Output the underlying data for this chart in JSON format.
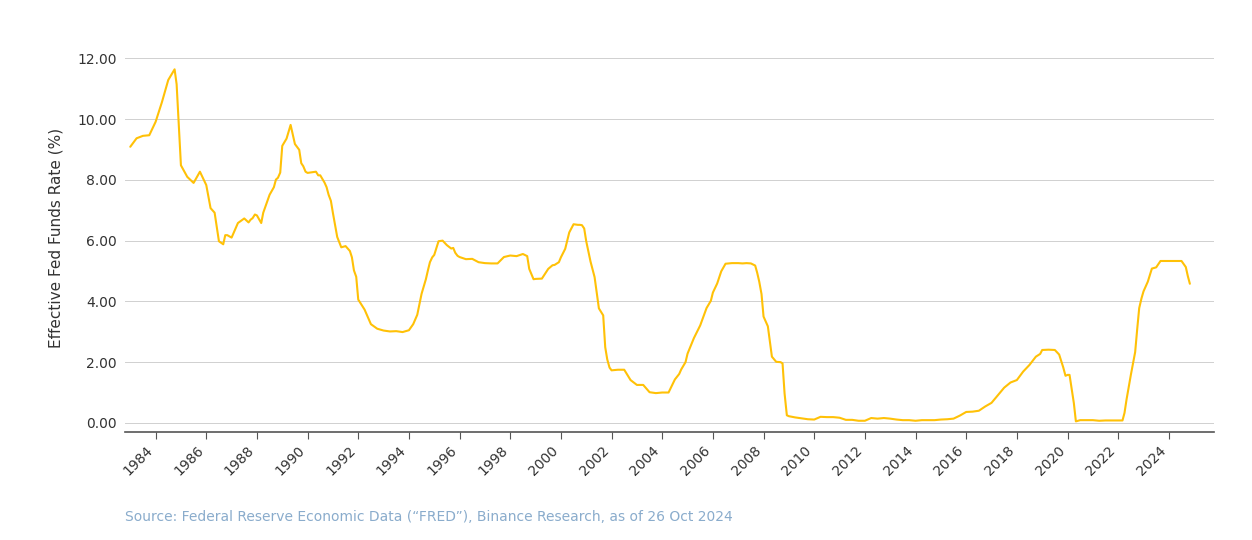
{
  "ylabel": "Effective Fed Funds Rate (%)",
  "source_text": "Source: Federal Reserve Economic Data (“FRED”), Binance Research, as of 26 Oct 2024",
  "line_color": "#FFC107",
  "background_color": "#FFFFFF",
  "grid_color": "#D0D0D0",
  "source_color": "#8AACCC",
  "ylim": [
    -0.3,
    12.5
  ],
  "yticks": [
    0.0,
    2.0,
    4.0,
    6.0,
    8.0,
    10.0,
    12.0
  ],
  "xlim": [
    1982.8,
    2025.8
  ],
  "xtick_years": [
    1984,
    1986,
    1988,
    1990,
    1992,
    1994,
    1996,
    1998,
    2000,
    2002,
    2004,
    2006,
    2008,
    2010,
    2012,
    2014,
    2016,
    2018,
    2020,
    2022,
    2024
  ],
  "data": [
    [
      1983.0,
      9.09
    ],
    [
      1983.25,
      9.37
    ],
    [
      1983.5,
      9.45
    ],
    [
      1983.75,
      9.47
    ],
    [
      1984.0,
      9.91
    ],
    [
      1984.25,
      10.56
    ],
    [
      1984.5,
      11.29
    ],
    [
      1984.75,
      11.64
    ],
    [
      1984.83,
      11.15
    ],
    [
      1985.0,
      8.48
    ],
    [
      1985.25,
      8.1
    ],
    [
      1985.5,
      7.9
    ],
    [
      1985.75,
      8.27
    ],
    [
      1986.0,
      7.83
    ],
    [
      1986.17,
      7.07
    ],
    [
      1986.33,
      6.92
    ],
    [
      1986.5,
      5.98
    ],
    [
      1986.67,
      5.88
    ],
    [
      1986.75,
      6.18
    ],
    [
      1986.83,
      6.18
    ],
    [
      1987.0,
      6.1
    ],
    [
      1987.25,
      6.58
    ],
    [
      1987.5,
      6.73
    ],
    [
      1987.67,
      6.6
    ],
    [
      1987.75,
      6.69
    ],
    [
      1987.83,
      6.74
    ],
    [
      1987.92,
      6.86
    ],
    [
      1988.0,
      6.83
    ],
    [
      1988.17,
      6.58
    ],
    [
      1988.25,
      6.92
    ],
    [
      1988.5,
      7.51
    ],
    [
      1988.67,
      7.76
    ],
    [
      1988.75,
      8.01
    ],
    [
      1988.83,
      8.07
    ],
    [
      1988.92,
      8.24
    ],
    [
      1989.0,
      9.12
    ],
    [
      1989.17,
      9.36
    ],
    [
      1989.33,
      9.81
    ],
    [
      1989.5,
      9.18
    ],
    [
      1989.67,
      8.99
    ],
    [
      1989.75,
      8.55
    ],
    [
      1989.83,
      8.45
    ],
    [
      1989.92,
      8.27
    ],
    [
      1990.0,
      8.23
    ],
    [
      1990.17,
      8.25
    ],
    [
      1990.33,
      8.27
    ],
    [
      1990.42,
      8.15
    ],
    [
      1990.5,
      8.15
    ],
    [
      1990.67,
      7.91
    ],
    [
      1990.75,
      7.76
    ],
    [
      1990.83,
      7.51
    ],
    [
      1990.92,
      7.31
    ],
    [
      1991.0,
      6.91
    ],
    [
      1991.17,
      6.12
    ],
    [
      1991.33,
      5.78
    ],
    [
      1991.5,
      5.82
    ],
    [
      1991.67,
      5.66
    ],
    [
      1991.75,
      5.45
    ],
    [
      1991.83,
      5.02
    ],
    [
      1991.92,
      4.81
    ],
    [
      1992.0,
      4.06
    ],
    [
      1992.25,
      3.73
    ],
    [
      1992.5,
      3.25
    ],
    [
      1992.75,
      3.1
    ],
    [
      1993.0,
      3.04
    ],
    [
      1993.25,
      3.01
    ],
    [
      1993.5,
      3.02
    ],
    [
      1993.75,
      2.99
    ],
    [
      1994.0,
      3.05
    ],
    [
      1994.17,
      3.25
    ],
    [
      1994.33,
      3.56
    ],
    [
      1994.5,
      4.25
    ],
    [
      1994.67,
      4.73
    ],
    [
      1994.75,
      5.02
    ],
    [
      1994.83,
      5.29
    ],
    [
      1994.92,
      5.45
    ],
    [
      1995.0,
      5.53
    ],
    [
      1995.17,
      5.98
    ],
    [
      1995.33,
      6.0
    ],
    [
      1995.5,
      5.85
    ],
    [
      1995.67,
      5.74
    ],
    [
      1995.75,
      5.76
    ],
    [
      1995.83,
      5.6
    ],
    [
      1995.92,
      5.5
    ],
    [
      1996.0,
      5.46
    ],
    [
      1996.25,
      5.39
    ],
    [
      1996.5,
      5.4
    ],
    [
      1996.75,
      5.29
    ],
    [
      1997.0,
      5.26
    ],
    [
      1997.25,
      5.25
    ],
    [
      1997.5,
      5.25
    ],
    [
      1997.75,
      5.46
    ],
    [
      1998.0,
      5.51
    ],
    [
      1998.25,
      5.49
    ],
    [
      1998.5,
      5.56
    ],
    [
      1998.67,
      5.49
    ],
    [
      1998.75,
      5.07
    ],
    [
      1998.92,
      4.73
    ],
    [
      1999.0,
      4.74
    ],
    [
      1999.25,
      4.75
    ],
    [
      1999.5,
      5.07
    ],
    [
      1999.67,
      5.19
    ],
    [
      1999.75,
      5.2
    ],
    [
      1999.92,
      5.29
    ],
    [
      2000.0,
      5.45
    ],
    [
      2000.17,
      5.73
    ],
    [
      2000.33,
      6.27
    ],
    [
      2000.5,
      6.54
    ],
    [
      2000.67,
      6.52
    ],
    [
      2000.75,
      6.52
    ],
    [
      2000.83,
      6.51
    ],
    [
      2000.92,
      6.4
    ],
    [
      2001.0,
      5.98
    ],
    [
      2001.17,
      5.31
    ],
    [
      2001.33,
      4.8
    ],
    [
      2001.5,
      3.77
    ],
    [
      2001.67,
      3.54
    ],
    [
      2001.75,
      2.49
    ],
    [
      2001.83,
      2.09
    ],
    [
      2001.92,
      1.82
    ],
    [
      2002.0,
      1.73
    ],
    [
      2002.25,
      1.75
    ],
    [
      2002.5,
      1.75
    ],
    [
      2002.75,
      1.41
    ],
    [
      2003.0,
      1.25
    ],
    [
      2003.25,
      1.25
    ],
    [
      2003.5,
      1.01
    ],
    [
      2003.75,
      0.98
    ],
    [
      2004.0,
      1.0
    ],
    [
      2004.25,
      1.0
    ],
    [
      2004.5,
      1.43
    ],
    [
      2004.67,
      1.61
    ],
    [
      2004.75,
      1.76
    ],
    [
      2004.92,
      2.0
    ],
    [
      2005.0,
      2.28
    ],
    [
      2005.25,
      2.79
    ],
    [
      2005.5,
      3.21
    ],
    [
      2005.75,
      3.78
    ],
    [
      2005.92,
      4.02
    ],
    [
      2006.0,
      4.29
    ],
    [
      2006.17,
      4.59
    ],
    [
      2006.33,
      4.99
    ],
    [
      2006.5,
      5.24
    ],
    [
      2006.75,
      5.26
    ],
    [
      2007.0,
      5.26
    ],
    [
      2007.17,
      5.25
    ],
    [
      2007.33,
      5.26
    ],
    [
      2007.5,
      5.25
    ],
    [
      2007.67,
      5.18
    ],
    [
      2007.75,
      4.94
    ],
    [
      2007.83,
      4.65
    ],
    [
      2007.92,
      4.24
    ],
    [
      2008.0,
      3.5
    ],
    [
      2008.17,
      3.18
    ],
    [
      2008.33,
      2.18
    ],
    [
      2008.5,
      2.01
    ],
    [
      2008.67,
      2.0
    ],
    [
      2008.75,
      1.96
    ],
    [
      2008.83,
      0.97
    ],
    [
      2008.92,
      0.25
    ],
    [
      2009.0,
      0.22
    ],
    [
      2009.25,
      0.18
    ],
    [
      2009.5,
      0.15
    ],
    [
      2009.75,
      0.12
    ],
    [
      2010.0,
      0.11
    ],
    [
      2010.25,
      0.2
    ],
    [
      2010.5,
      0.19
    ],
    [
      2010.75,
      0.19
    ],
    [
      2011.0,
      0.17
    ],
    [
      2011.25,
      0.1
    ],
    [
      2011.5,
      0.1
    ],
    [
      2011.75,
      0.07
    ],
    [
      2012.0,
      0.07
    ],
    [
      2012.25,
      0.16
    ],
    [
      2012.5,
      0.14
    ],
    [
      2012.75,
      0.16
    ],
    [
      2013.0,
      0.14
    ],
    [
      2013.25,
      0.11
    ],
    [
      2013.5,
      0.09
    ],
    [
      2013.75,
      0.09
    ],
    [
      2014.0,
      0.07
    ],
    [
      2014.25,
      0.09
    ],
    [
      2014.5,
      0.09
    ],
    [
      2014.75,
      0.09
    ],
    [
      2015.0,
      0.11
    ],
    [
      2015.25,
      0.12
    ],
    [
      2015.5,
      0.14
    ],
    [
      2015.75,
      0.24
    ],
    [
      2016.0,
      0.36
    ],
    [
      2016.25,
      0.37
    ],
    [
      2016.5,
      0.4
    ],
    [
      2016.75,
      0.54
    ],
    [
      2017.0,
      0.66
    ],
    [
      2017.25,
      0.91
    ],
    [
      2017.5,
      1.16
    ],
    [
      2017.75,
      1.33
    ],
    [
      2018.0,
      1.41
    ],
    [
      2018.25,
      1.69
    ],
    [
      2018.5,
      1.91
    ],
    [
      2018.75,
      2.18
    ],
    [
      2018.92,
      2.27
    ],
    [
      2019.0,
      2.4
    ],
    [
      2019.25,
      2.41
    ],
    [
      2019.5,
      2.4
    ],
    [
      2019.67,
      2.25
    ],
    [
      2019.75,
      2.04
    ],
    [
      2019.83,
      1.83
    ],
    [
      2019.92,
      1.55
    ],
    [
      2020.0,
      1.58
    ],
    [
      2020.08,
      1.58
    ],
    [
      2020.17,
      1.09
    ],
    [
      2020.25,
      0.65
    ],
    [
      2020.33,
      0.05
    ],
    [
      2020.5,
      0.09
    ],
    [
      2020.67,
      0.09
    ],
    [
      2020.75,
      0.09
    ],
    [
      2020.83,
      0.09
    ],
    [
      2020.92,
      0.09
    ],
    [
      2021.0,
      0.09
    ],
    [
      2021.25,
      0.07
    ],
    [
      2021.5,
      0.08
    ],
    [
      2021.75,
      0.08
    ],
    [
      2021.92,
      0.08
    ],
    [
      2022.0,
      0.08
    ],
    [
      2022.17,
      0.08
    ],
    [
      2022.25,
      0.33
    ],
    [
      2022.33,
      0.77
    ],
    [
      2022.5,
      1.58
    ],
    [
      2022.67,
      2.33
    ],
    [
      2022.75,
      3.08
    ],
    [
      2022.83,
      3.78
    ],
    [
      2022.92,
      4.1
    ],
    [
      2023.0,
      4.33
    ],
    [
      2023.17,
      4.65
    ],
    [
      2023.33,
      5.08
    ],
    [
      2023.5,
      5.12
    ],
    [
      2023.67,
      5.33
    ],
    [
      2023.75,
      5.33
    ],
    [
      2023.83,
      5.33
    ],
    [
      2023.92,
      5.33
    ],
    [
      2024.0,
      5.33
    ],
    [
      2024.17,
      5.33
    ],
    [
      2024.33,
      5.33
    ],
    [
      2024.5,
      5.33
    ],
    [
      2024.67,
      5.13
    ],
    [
      2024.75,
      4.83
    ],
    [
      2024.83,
      4.58
    ]
  ]
}
